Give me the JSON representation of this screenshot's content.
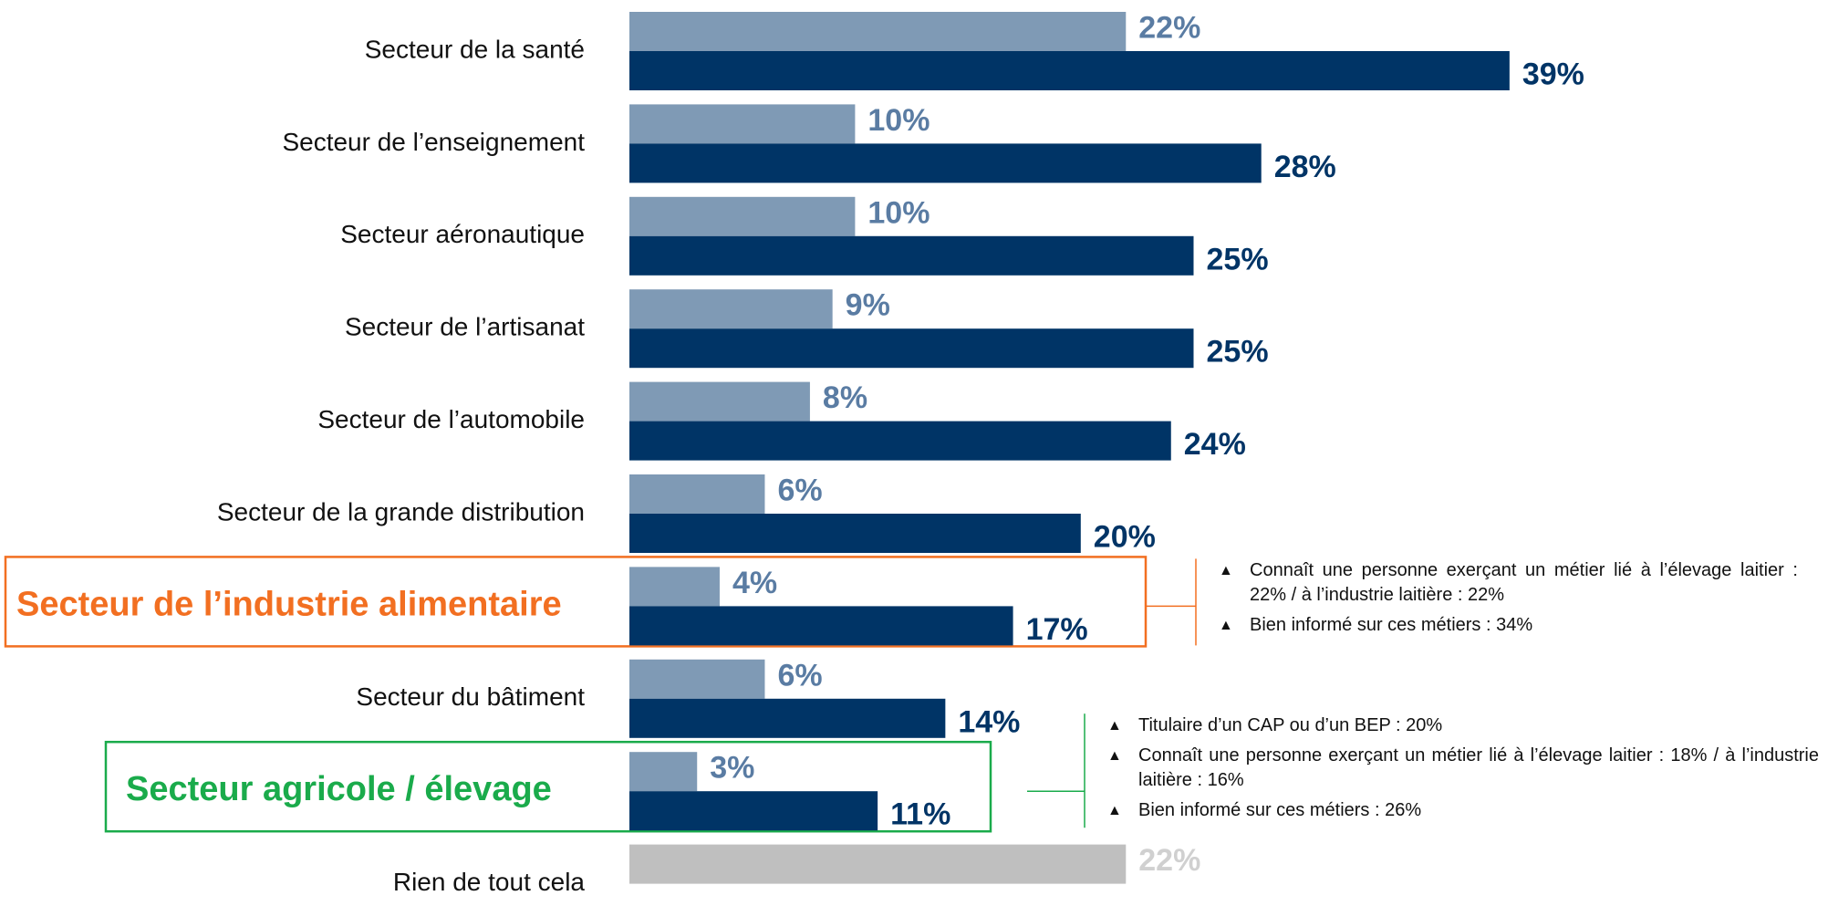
{
  "chart_data": {
    "type": "bar",
    "orientation": "horizontal",
    "categories": [
      "Secteur de la santé",
      "Secteur de l’enseignement",
      "Secteur aéronautique",
      "Secteur de l’artisanat",
      "Secteur de l’automobile",
      "Secteur de la grande distribution",
      "Secteur de l’industrie alimentaire",
      "Secteur du bâtiment",
      "Secteur agricole / élevage",
      "Rien de tout cela"
    ],
    "series": [
      {
        "color": "#7f9ab5",
        "label_color": "#5a7ca3",
        "values": [
          22,
          10,
          10,
          9,
          8,
          6,
          4,
          6,
          3,
          null
        ],
        "value_labels": [
          "22%",
          "10%",
          "10%",
          "9%",
          "8%",
          "6%",
          "4%",
          "6%",
          "3%",
          null
        ]
      },
      {
        "color": "#003466",
        "label_color": "#003466",
        "values": [
          39,
          28,
          25,
          25,
          24,
          20,
          17,
          14,
          11,
          null
        ],
        "value_labels": [
          "39%",
          "28%",
          "25%",
          "25%",
          "24%",
          "20%",
          "17%",
          "14%",
          "11%",
          null
        ]
      },
      {
        "color": "#bfbfbf",
        "label_color": "#d0d0d0",
        "values": [
          null,
          null,
          null,
          null,
          null,
          null,
          null,
          null,
          null,
          22
        ],
        "value_labels": [
          null,
          null,
          null,
          null,
          null,
          null,
          null,
          null,
          null,
          "22%"
        ]
      }
    ],
    "highlights": [
      {
        "category": 6,
        "color": "#f26f21"
      },
      {
        "category": 8,
        "color": "#1aab4b"
      }
    ],
    "notes": [
      {
        "category": 6,
        "color": "#f26f21",
        "items": [
          "Connaît une personne exerçant un métier lié à l’élevage laitier : 22% / à l’industrie laitière : 22%",
          "Bien informé sur ces métiers : 34%"
        ]
      },
      {
        "category": 8,
        "color": "#1aab4b",
        "items": [
          "Titulaire d’un CAP ou d’un BEP : 20%",
          "Connaît une personne exerçant un métier lié à l’élevage laitier : 18% / à l’industrie laitière : 16%",
          "Bien informé sur ces métiers : 26%"
        ]
      }
    ]
  }
}
